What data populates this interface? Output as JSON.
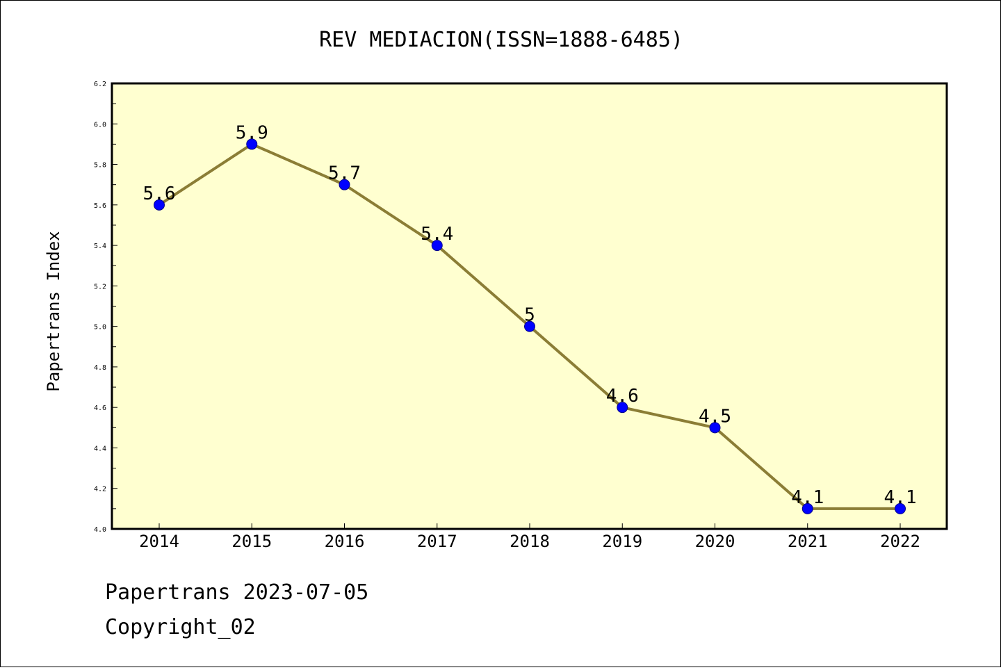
{
  "chart_data": {
    "type": "line",
    "title": "REV MEDIACION(ISSN=1888-6485)",
    "xlabel": "",
    "ylabel": "Papertrans Index",
    "categories": [
      "2014",
      "2015",
      "2016",
      "2017",
      "2018",
      "2019",
      "2020",
      "2021",
      "2022"
    ],
    "values": [
      5.6,
      5.9,
      5.7,
      5.4,
      5.0,
      4.6,
      4.5,
      4.1,
      4.1
    ],
    "data_labels": [
      "5.6",
      "5.9",
      "5.7",
      "5.4",
      "5",
      "4.6",
      "4.5",
      "4.1",
      "4.1"
    ],
    "ylim": [
      4.0,
      6.2
    ],
    "yticks": [
      "4.0",
      "4.2",
      "4.4",
      "4.6",
      "4.8",
      "5.0",
      "5.2",
      "5.4",
      "5.6",
      "5.8",
      "6.0",
      "6.2"
    ],
    "grid": false,
    "legend": "none",
    "colors": {
      "plot_background": "#ffffd0",
      "line": "#8b7d35",
      "marker_fill": "#0000ff",
      "marker_stroke": "#00008b"
    }
  },
  "footer": {
    "line1": "Papertrans 2023-07-05",
    "line2": "Copyright_02"
  }
}
